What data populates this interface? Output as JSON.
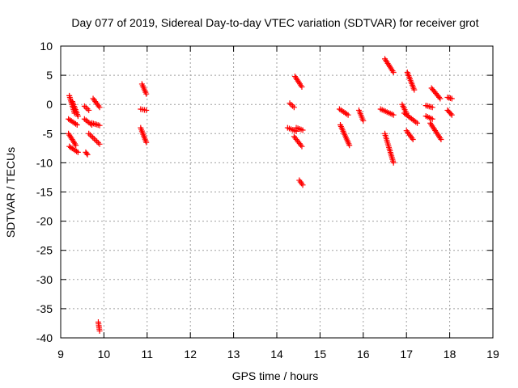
{
  "chart_data": {
    "type": "scatter",
    "title": "Day 077 of 2019, Sidereal Day-to-day VTEC variation (SDTVAR) for receiver grot",
    "xlabel": "GPS time / hours",
    "ylabel": "SDTVAR / TECUs",
    "xlim": [
      9,
      19
    ],
    "ylim": [
      -40,
      10
    ],
    "x_ticks": [
      9,
      10,
      11,
      12,
      13,
      14,
      15,
      16,
      17,
      18,
      19
    ],
    "y_ticks": [
      10,
      5,
      0,
      -5,
      -10,
      -15,
      -20,
      -25,
      -30,
      -35,
      -40
    ],
    "grid": true,
    "marker": "+",
    "marker_color": "#ff0000",
    "series": [
      {
        "name": "SDTVAR",
        "segments": [
          {
            "x": [
              9.2,
              9.32
            ],
            "y": [
              1.5,
              -1.5
            ]
          },
          {
            "x": [
              9.27,
              9.4
            ],
            "y": [
              0.5,
              -2.0
            ]
          },
          {
            "x": [
              9.18,
              9.38
            ],
            "y": [
              -2.5,
              -3.5
            ]
          },
          {
            "x": [
              9.18,
              9.35
            ],
            "y": [
              -5.0,
              -7.0
            ]
          },
          {
            "x": [
              9.2,
              9.4
            ],
            "y": [
              -7.2,
              -8.2
            ]
          },
          {
            "x": [
              9.55,
              9.65
            ],
            "y": [
              -0.3,
              -1.0
            ]
          },
          {
            "x": [
              9.55,
              9.72
            ],
            "y": [
              -2.5,
              -3.5
            ]
          },
          {
            "x": [
              9.58,
              9.62
            ],
            "y": [
              -8.2,
              -8.6
            ]
          },
          {
            "x": [
              9.65,
              9.9
            ],
            "y": [
              -5.0,
              -6.8
            ]
          },
          {
            "x": [
              9.72,
              9.9
            ],
            "y": [
              -3.2,
              -3.6
            ]
          },
          {
            "x": [
              9.75,
              9.9
            ],
            "y": [
              1.0,
              -0.5
            ]
          },
          {
            "x": [
              9.87,
              9.9
            ],
            "y": [
              -37.3,
              -38.8
            ]
          },
          {
            "x": [
              10.88,
              10.98
            ],
            "y": [
              3.5,
              1.8
            ]
          },
          {
            "x": [
              10.85,
              10.98
            ],
            "y": [
              -0.8,
              -1.0
            ]
          },
          {
            "x": [
              10.85,
              10.98
            ],
            "y": [
              -4.0,
              -6.5
            ]
          },
          {
            "x": [
              14.3,
              14.4
            ],
            "y": [
              0.2,
              -0.5
            ]
          },
          {
            "x": [
              14.25,
              14.45
            ],
            "y": [
              -4.0,
              -4.6
            ]
          },
          {
            "x": [
              14.42,
              14.58
            ],
            "y": [
              4.8,
              3.0
            ]
          },
          {
            "x": [
              14.45,
              14.6
            ],
            "y": [
              -4.0,
              -4.4
            ]
          },
          {
            "x": [
              14.4,
              14.58
            ],
            "y": [
              -5.5,
              -7.2
            ]
          },
          {
            "x": [
              14.52,
              14.6
            ],
            "y": [
              -13.0,
              -13.8
            ]
          },
          {
            "x": [
              15.45,
              15.65
            ],
            "y": [
              -0.8,
              -1.8
            ]
          },
          {
            "x": [
              15.47,
              15.68
            ],
            "y": [
              -3.5,
              -7.0
            ]
          },
          {
            "x": [
              15.9,
              16.0
            ],
            "y": [
              -1.0,
              -2.8
            ]
          },
          {
            "x": [
              16.4,
              16.7
            ],
            "y": [
              -0.8,
              -1.8
            ]
          },
          {
            "x": [
              16.5,
              16.7
            ],
            "y": [
              7.8,
              5.5
            ]
          },
          {
            "x": [
              16.5,
              16.7
            ],
            "y": [
              -5.0,
              -10.0
            ]
          },
          {
            "x": [
              16.9,
              17.0
            ],
            "y": [
              0.0,
              -1.5
            ]
          },
          {
            "x": [
              16.95,
              17.25
            ],
            "y": [
              -1.5,
              -3.2
            ]
          },
          {
            "x": [
              17.02,
              17.18
            ],
            "y": [
              5.5,
              2.5
            ]
          },
          {
            "x": [
              17.0,
              17.15
            ],
            "y": [
              -4.5,
              -6.0
            ]
          },
          {
            "x": [
              17.45,
              17.6
            ],
            "y": [
              -0.2,
              -0.5
            ]
          },
          {
            "x": [
              17.45,
              17.6
            ],
            "y": [
              -2.0,
              -2.5
            ]
          },
          {
            "x": [
              17.58,
              17.78
            ],
            "y": [
              2.8,
              1.0
            ]
          },
          {
            "x": [
              17.55,
              17.8
            ],
            "y": [
              -3.2,
              -6.0
            ]
          },
          {
            "x": [
              17.95,
              18.05
            ],
            "y": [
              1.2,
              1.0
            ]
          },
          {
            "x": [
              17.95,
              18.05
            ],
            "y": [
              -1.0,
              -1.8
            ]
          }
        ]
      }
    ]
  }
}
